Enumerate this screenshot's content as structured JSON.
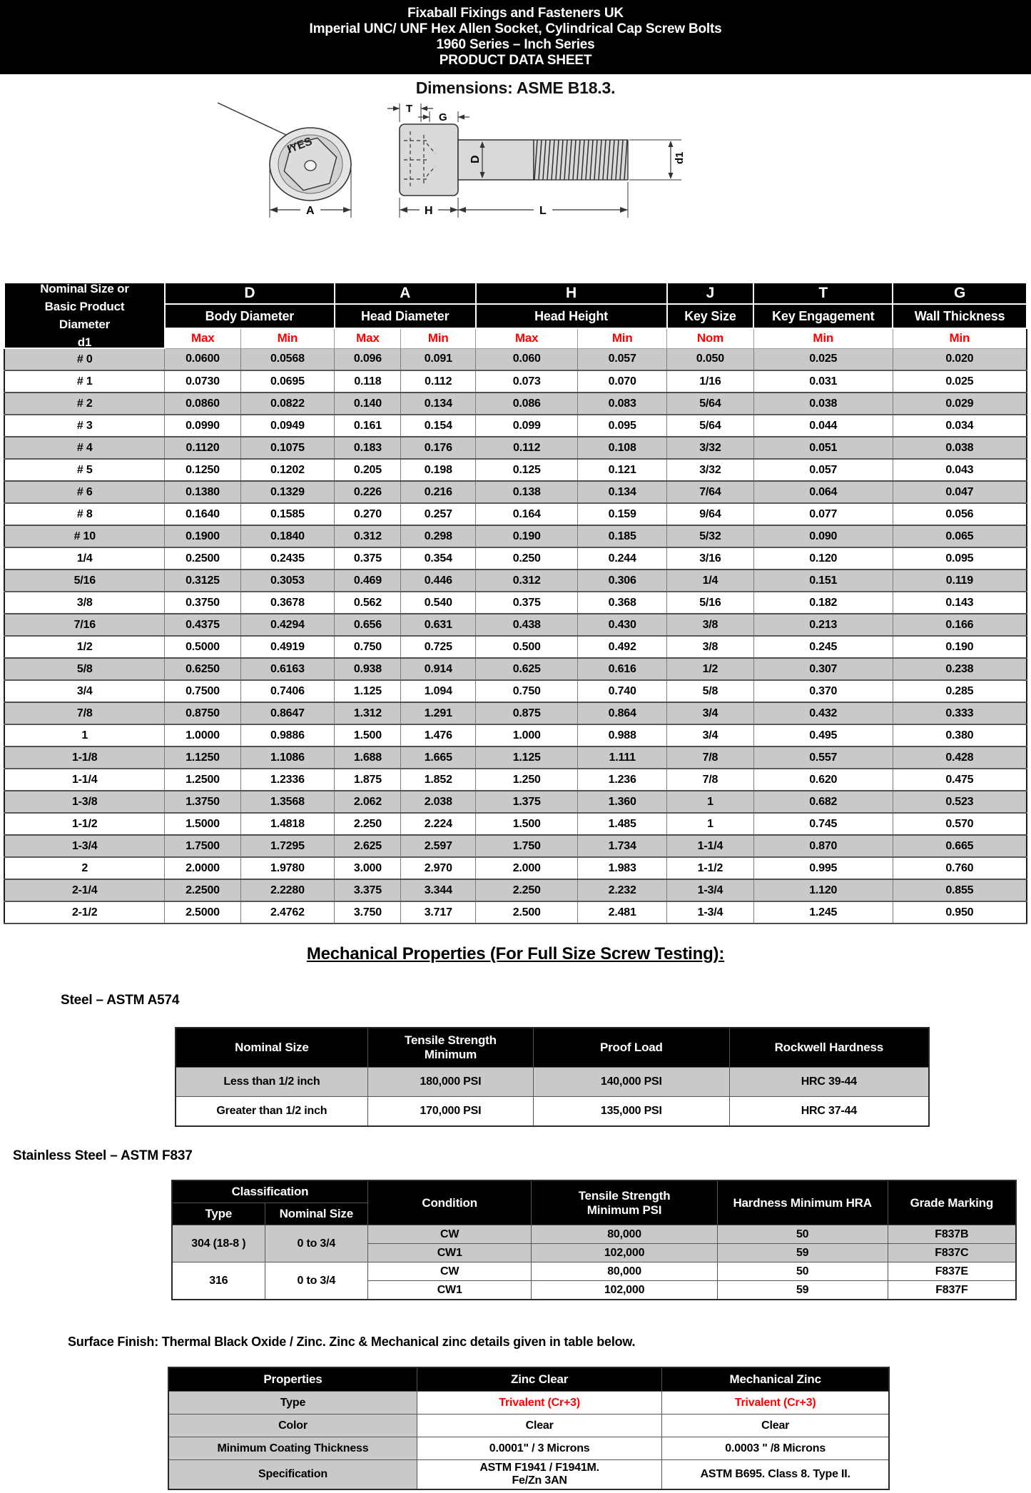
{
  "colors": {
    "accent_red": "#ff0000",
    "row_gray": "#c9c9c9",
    "header_black": "#000000"
  },
  "banner": {
    "line1": "Fixaball Fixings and Fasteners UK",
    "line2": "Imperial UNC/ UNF Hex Allen Socket, Cylindrical Cap Screw Bolts",
    "line3": "1960 Series – Inch Series",
    "line4": "PRODUCT DATA SHEET",
    "dimensions_note": "Dimensions: ASME B18.3."
  },
  "drawing": {
    "head_marking": "IYES",
    "labels": {
      "t": "T",
      "g": "G",
      "d": "D",
      "d1": "d1",
      "a": "A",
      "h": "H",
      "l": "L"
    }
  },
  "dimension_table": {
    "col0_header": [
      "Nominal Size or",
      "Basic Product",
      "Diameter",
      "d1"
    ],
    "groups": [
      {
        "letter": "D",
        "name": "Body Diameter",
        "subs": [
          "Max",
          "Min"
        ]
      },
      {
        "letter": "A",
        "name": "Head Diameter",
        "subs": [
          "Max",
          "Min"
        ]
      },
      {
        "letter": "H",
        "name": "Head Height",
        "subs": [
          "Max",
          "Min"
        ]
      },
      {
        "letter": "J",
        "name": "Key Size",
        "subs": [
          "Nom"
        ]
      },
      {
        "letter": "T",
        "name": "Key Engagement",
        "subs": [
          "Min"
        ]
      },
      {
        "letter": "G",
        "name": "Wall Thickness",
        "subs": [
          "Min"
        ]
      }
    ],
    "rows": [
      [
        "# 0",
        "0.0600",
        "0.0568",
        "0.096",
        "0.091",
        "0.060",
        "0.057",
        "0.050",
        "0.025",
        "0.020"
      ],
      [
        "# 1",
        "0.0730",
        "0.0695",
        "0.118",
        "0.112",
        "0.073",
        "0.070",
        "1/16",
        "0.031",
        "0.025"
      ],
      [
        "# 2",
        "0.0860",
        "0.0822",
        "0.140",
        "0.134",
        "0.086",
        "0.083",
        "5/64",
        "0.038",
        "0.029"
      ],
      [
        "# 3",
        "0.0990",
        "0.0949",
        "0.161",
        "0.154",
        "0.099",
        "0.095",
        "5/64",
        "0.044",
        "0.034"
      ],
      [
        "# 4",
        "0.1120",
        "0.1075",
        "0.183",
        "0.176",
        "0.112",
        "0.108",
        "3/32",
        "0.051",
        "0.038"
      ],
      [
        "# 5",
        "0.1250",
        "0.1202",
        "0.205",
        "0.198",
        "0.125",
        "0.121",
        "3/32",
        "0.057",
        "0.043"
      ],
      [
        "# 6",
        "0.1380",
        "0.1329",
        "0.226",
        "0.216",
        "0.138",
        "0.134",
        "7/64",
        "0.064",
        "0.047"
      ],
      [
        "# 8",
        "0.1640",
        "0.1585",
        "0.270",
        "0.257",
        "0.164",
        "0.159",
        "9/64",
        "0.077",
        "0.056"
      ],
      [
        "# 10",
        "0.1900",
        "0.1840",
        "0.312",
        "0.298",
        "0.190",
        "0.185",
        "5/32",
        "0.090",
        "0.065"
      ],
      [
        "1/4",
        "0.2500",
        "0.2435",
        "0.375",
        "0.354",
        "0.250",
        "0.244",
        "3/16",
        "0.120",
        "0.095"
      ],
      [
        "5/16",
        "0.3125",
        "0.3053",
        "0.469",
        "0.446",
        "0.312",
        "0.306",
        "1/4",
        "0.151",
        "0.119"
      ],
      [
        "3/8",
        "0.3750",
        "0.3678",
        "0.562",
        "0.540",
        "0.375",
        "0.368",
        "5/16",
        "0.182",
        "0.143"
      ],
      [
        "7/16",
        "0.4375",
        "0.4294",
        "0.656",
        "0.631",
        "0.438",
        "0.430",
        "3/8",
        "0.213",
        "0.166"
      ],
      [
        "1/2",
        "0.5000",
        "0.4919",
        "0.750",
        "0.725",
        "0.500",
        "0.492",
        "3/8",
        "0.245",
        "0.190"
      ],
      [
        "5/8",
        "0.6250",
        "0.6163",
        "0.938",
        "0.914",
        "0.625",
        "0.616",
        "1/2",
        "0.307",
        "0.238"
      ],
      [
        "3/4",
        "0.7500",
        "0.7406",
        "1.125",
        "1.094",
        "0.750",
        "0.740",
        "5/8",
        "0.370",
        "0.285"
      ],
      [
        "7/8",
        "0.8750",
        "0.8647",
        "1.312",
        "1.291",
        "0.875",
        "0.864",
        "3/4",
        "0.432",
        "0.333"
      ],
      [
        "1",
        "1.0000",
        "0.9886",
        "1.500",
        "1.476",
        "1.000",
        "0.988",
        "3/4",
        "0.495",
        "0.380"
      ],
      [
        "1-1/8",
        "1.1250",
        "1.1086",
        "1.688",
        "1.665",
        "1.125",
        "1.111",
        "7/8",
        "0.557",
        "0.428"
      ],
      [
        "1-1/4",
        "1.2500",
        "1.2336",
        "1.875",
        "1.852",
        "1.250",
        "1.236",
        "7/8",
        "0.620",
        "0.475"
      ],
      [
        "1-3/8",
        "1.3750",
        "1.3568",
        "2.062",
        "2.038",
        "1.375",
        "1.360",
        "1",
        "0.682",
        "0.523"
      ],
      [
        "1-1/2",
        "1.5000",
        "1.4818",
        "2.250",
        "2.224",
        "1.500",
        "1.485",
        "1",
        "0.745",
        "0.570"
      ],
      [
        "1-3/4",
        "1.7500",
        "1.7295",
        "2.625",
        "2.597",
        "1.750",
        "1.734",
        "1-1/4",
        "0.870",
        "0.665"
      ],
      [
        "2",
        "2.0000",
        "1.9780",
        "3.000",
        "2.970",
        "2.000",
        "1.983",
        "1-1/2",
        "0.995",
        "0.760"
      ],
      [
        "2-1/4",
        "2.2500",
        "2.2280",
        "3.375",
        "3.344",
        "2.250",
        "2.232",
        "1-3/4",
        "1.120",
        "0.855"
      ],
      [
        "2-1/2",
        "2.5000",
        "2.4762",
        "3.750",
        "3.717",
        "2.500",
        "2.481",
        "1-3/4",
        "1.245",
        "0.950"
      ]
    ]
  },
  "mechanical": {
    "heading": "Mechanical Properties (For Full Size Screw Testing): "
  },
  "steel": {
    "title": "Steel – ASTM A574",
    "headers": [
      "Nominal Size",
      "Tensile Strength\nMinimum",
      "Proof Load",
      "Rockwell Hardness"
    ],
    "rows": [
      [
        "Less than 1/2 inch",
        "180,000 PSI",
        "140,000 PSI",
        "HRC 39-44"
      ],
      [
        "Greater than 1/2 inch",
        "170,000 PSI",
        "135,000 PSI",
        "HRC 37-44"
      ]
    ]
  },
  "stainless": {
    "title": "Stainless Steel – ASTM F837",
    "headers": {
      "classification": "Classification",
      "type": "Type",
      "nominal_size": "Nominal Size",
      "condition": "Condition",
      "tensile": "Tensile Strength\nMinimum PSI",
      "hardness": "Hardness Minimum HRA",
      "grade": "Grade Marking"
    },
    "groups": [
      {
        "type": "304 (18-8 )",
        "nominal": "0 to 3/4",
        "shaded": true,
        "rows": [
          [
            "CW",
            "80,000",
            "50",
            "F837B"
          ],
          [
            "CW1",
            "102,000",
            "59",
            "F837C"
          ]
        ]
      },
      {
        "type": "316",
        "nominal": "0 to 3/4",
        "shaded": false,
        "rows": [
          [
            "CW",
            "80,000",
            "50",
            "F837E"
          ],
          [
            "CW1",
            "102,000",
            "59",
            "F837F"
          ]
        ]
      }
    ]
  },
  "surface": {
    "note": "Surface Finish: Thermal Black Oxide / Zinc. Zinc & Mechanical zinc details given in table below.",
    "table": {
      "headers": [
        "Properties",
        "Zinc Clear",
        "Mechanical Zinc"
      ],
      "rows": [
        {
          "label": "Type",
          "zinc": "Trivalent (Cr+3)",
          "mech": "Trivalent (Cr+3)",
          "red": true
        },
        {
          "label": "Color",
          "zinc": "Clear",
          "mech": "Clear",
          "red": false
        },
        {
          "label": "Minimum Coating Thickness",
          "zinc": "0.0001\" / 3 Microns",
          "mech": "0.0003 \" /8 Microns",
          "red": false
        },
        {
          "label": "Specification",
          "zinc": "ASTM F1941 / F1941M.\nFe/Zn 3AN",
          "mech": "ASTM B695. Class 8. Type II.",
          "red": false
        }
      ]
    }
  }
}
